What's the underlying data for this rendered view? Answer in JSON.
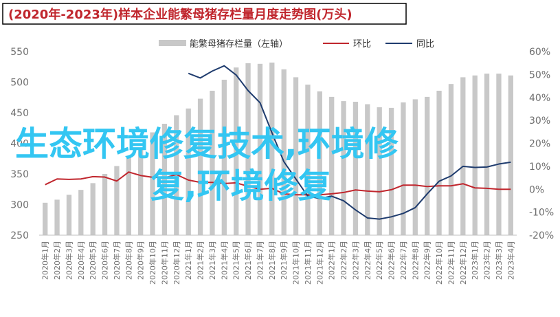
{
  "title": "(2020年-2023年)样本企业能繁母猪存栏量月度走势图(万头)",
  "overlay_text": {
    "line1": "生态环境修复技术,环境修",
    "line2": "复,环境修复"
  },
  "colors": {
    "bar": "#c8c8c8",
    "huanbi": "#c0262d",
    "tongbi": "#1f3c6e",
    "overlay": "#33c6f2",
    "title_border": "#000000",
    "axis_text": "#6f6f6f"
  },
  "chart_data": {
    "type": "bar",
    "categories": [
      "2020年1月",
      "2020年2月",
      "2020年3月",
      "2020年4月",
      "2020年5月",
      "2020年6月",
      "2020年7月",
      "2020年8月",
      "2020年9月",
      "2020年10月",
      "2020年11月",
      "2020年12月",
      "2021年1月",
      "2021年2月",
      "2021年3月",
      "2021年4月",
      "2021年5月",
      "2021年6月",
      "2021年7月",
      "2021年8月",
      "2021年9月",
      "2021年10月",
      "2021年11月",
      "2021年12月",
      "2022年1月",
      "2022年2月",
      "2022年3月",
      "2022年4月",
      "2022年5月",
      "2022年6月",
      "2022年7月",
      "2022年8月",
      "2022年9月",
      "2022年10月",
      "2022年11月",
      "2022年12月",
      "2023年1月",
      "2023年2月",
      "2023年3月",
      "2023年4月"
    ],
    "x_tick_labels": [
      "2020年1月",
      "2020年2月",
      "2020年3月",
      "2020年4月",
      "2020年5月",
      "2020年6月",
      "2020年7月",
      "2020年8月",
      "2020年9月",
      "2020年10月",
      "2020年11月",
      "2020年12月",
      "2021年1月",
      "2021年2月",
      "2021年3月",
      "2021年4月",
      "2021年5月",
      "2021年6月",
      "2021年7月",
      "2021年8月",
      "2021年9月",
      "2021年10月",
      "2021年11月",
      "2021年12月",
      "2022年1月",
      "2022年2月",
      "2022年3月",
      "2022年4月",
      "2022年5月",
      "2022年6月",
      "2022年7月",
      "2022年8月",
      "2022年9月",
      "2022年10月",
      "2022年11月",
      "2022年12月",
      "2023年1月",
      "2023年2月",
      "2023年3月",
      "2023年4月"
    ],
    "series": [
      {
        "name": "能繁母猪存栏量（左轴）",
        "type": "bar",
        "axis": "left",
        "values": [
          303,
          308,
          316,
          324,
          335,
          350,
          363,
          378,
          390,
          418,
          432,
          446,
          457,
          473,
          486,
          504,
          524,
          531,
          530,
          532,
          521,
          508,
          496,
          485,
          476,
          469,
          468,
          464,
          459,
          458,
          467,
          472,
          476,
          486,
          497,
          508,
          511,
          514,
          514,
          511
        ]
      },
      {
        "name": "环比",
        "type": "line",
        "axis": "right",
        "values": [
          2,
          4.5,
          4.3,
          4.5,
          5.5,
          5.3,
          3.6,
          7.5,
          6,
          5.2,
          5,
          6.4,
          4,
          3,
          3,
          2.5,
          2.8,
          1.3,
          0,
          0.4,
          -2,
          -2.4,
          -2.4,
          -2.4,
          -2,
          -1.4,
          -0.3,
          -0.8,
          -1.1,
          -0.2,
          1.8,
          1.8,
          1.2,
          1.5,
          1.5,
          2.4,
          0.6,
          0.4,
          0,
          0
        ]
      },
      {
        "name": "同比",
        "type": "line",
        "axis": "right",
        "values": [
          null,
          null,
          null,
          null,
          null,
          null,
          null,
          null,
          null,
          null,
          null,
          null,
          50.5,
          48.5,
          51.5,
          53.8,
          49.8,
          43,
          37.7,
          24.6,
          12,
          4.5,
          -3,
          -4,
          -3,
          -5,
          -9,
          -12.5,
          -13,
          -12,
          -10.5,
          -8,
          -2,
          3.5,
          5.8,
          10,
          9.5,
          9.7,
          11,
          11.8
        ]
      }
    ],
    "y_left": {
      "min": 250,
      "max": 550,
      "ticks": [
        250,
        300,
        350,
        400,
        450,
        500,
        550
      ]
    },
    "y_right": {
      "min": -20,
      "max": 60,
      "ticks": [
        "-20%",
        "-10%",
        "0%",
        "10%",
        "20%",
        "30%",
        "40%",
        "50%",
        "60%"
      ]
    },
    "legend": {
      "position": "top",
      "items": [
        "能繁母猪存栏量（左轴）",
        "环比",
        "同比"
      ]
    },
    "grid": false
  }
}
